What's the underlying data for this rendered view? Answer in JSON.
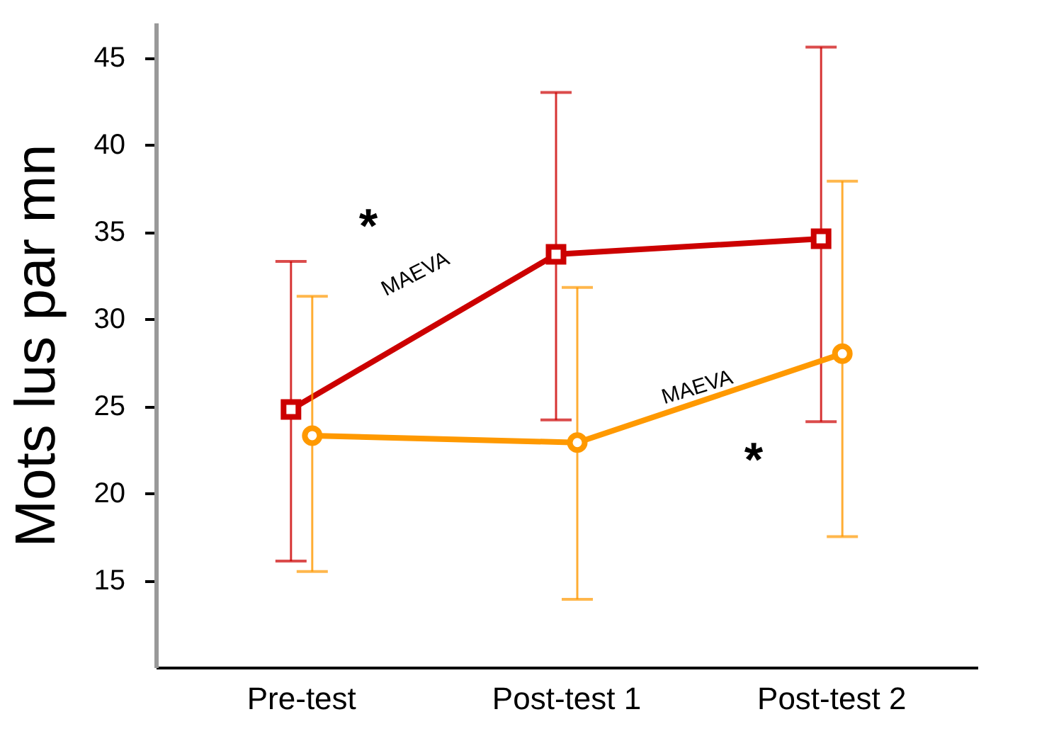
{
  "chart_data": {
    "type": "line",
    "ylabel": "Mots lus par mn",
    "categories": [
      "Pre-test",
      "Post-test 1",
      "Post-test 2"
    ],
    "series": [
      {
        "color": "#cc0000",
        "marker": "square",
        "values": [
          24.8,
          33.7,
          34.6
        ],
        "errors": [
          [
            16.1,
            33.3
          ],
          [
            24.2,
            43.0
          ],
          [
            24.1,
            45.6
          ]
        ]
      },
      {
        "color": "#ff9900",
        "marker": "circle",
        "values": [
          23.3,
          22.9,
          28.0
        ],
        "errors": [
          [
            15.5,
            31.3
          ],
          [
            13.9,
            31.8
          ],
          [
            17.5,
            37.9
          ]
        ]
      }
    ],
    "ylim": [
      10,
      47
    ],
    "yticks": [
      15,
      20,
      25,
      30,
      35,
      40,
      45
    ],
    "annotations": [
      "*",
      "MAEVA",
      "MAEVA",
      "*"
    ]
  }
}
